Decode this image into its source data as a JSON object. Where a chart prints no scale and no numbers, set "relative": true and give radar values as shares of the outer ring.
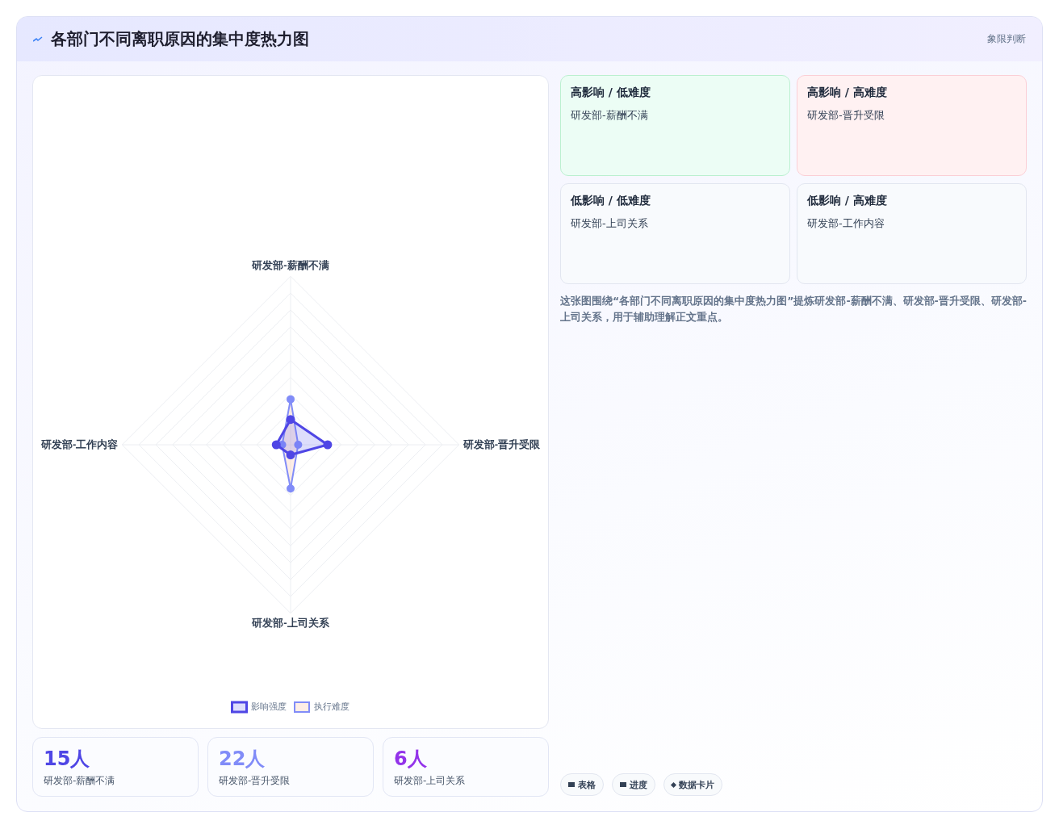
{
  "chart_data": [
    {
      "type": "radar",
      "title": "各部门不同离职原因的集中度热力图",
      "categories": [
        "研发部-薪酬不满",
        "研发部-晋升受限",
        "研发部-上司关系",
        "研发部-工作内容"
      ],
      "relative": true,
      "legend": "bottom",
      "grid": true,
      "marker": "circle",
      "series": [
        {
          "name": "影响强度",
          "color": "#4f46e5",
          "values": [
            0.15,
            0.22,
            0.06,
            0.085
          ]
        },
        {
          "name": "执行难度",
          "color": "#818cf8",
          "values": [
            0.27,
            0.045,
            0.26,
            0.05
          ]
        }
      ]
    },
    {
      "type": "other",
      "title": "象限判断",
      "annotations": [
        "高影响 / 低难度",
        "研发部-薪酬不满",
        "高影响 / 高难度",
        "研发部-晋升受限",
        "低影响 / 低难度",
        "研发部-上司关系",
        "低影响 / 高难度",
        "研发部-工作内容"
      ]
    },
    {
      "type": "other",
      "annotations": [
        "这张图围绕“各部门不同离职原因的集中度热力图”提炼研发部-薪酬不满、研发部-晋升受限、研发部-上司关系，用于辅助理解正文重点。"
      ]
    },
    {
      "type": "other",
      "annotations": [
        "15人",
        "研发部-薪酬不满",
        "22人",
        "研发部-晋升受限",
        "6人",
        "研发部-上司关系"
      ]
    },
    {
      "type": "other",
      "annotations": [
        "表格",
        "进度",
        "数据卡片"
      ]
    }
  ]
}
